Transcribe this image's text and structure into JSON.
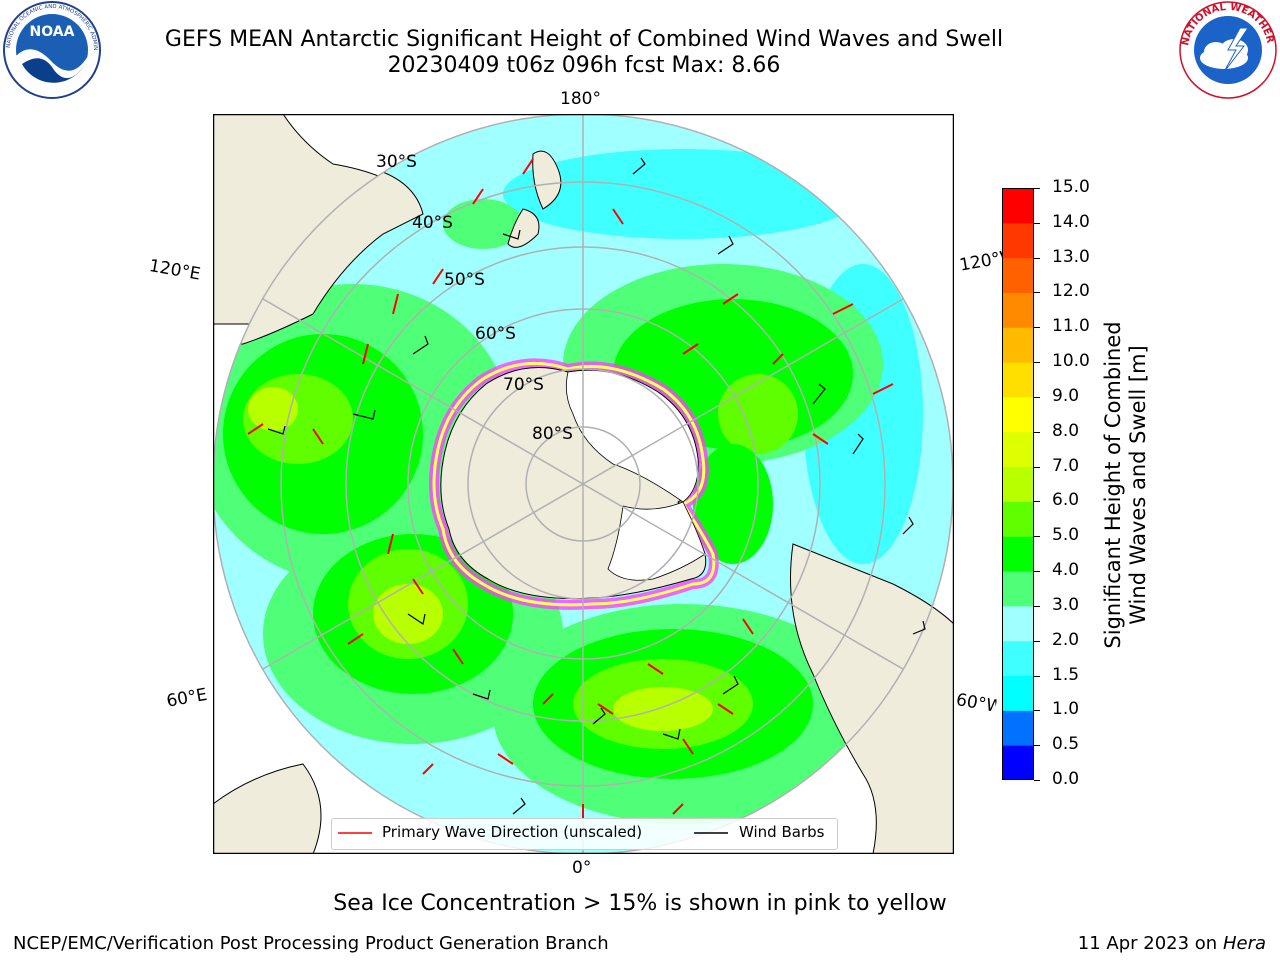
{
  "header": {
    "title": "GEFS MEAN Antarctic Significant Height of Combined Wind Waves and Swell",
    "subtitle": "20230409 t06z 096h fcst   Max: 8.66"
  },
  "logos": {
    "noaa_text": "NOAA",
    "noaa_ring_text": "NATIONAL OCEANIC AND ATMOSPHERIC ADMINISTRATION · U.S. DEPARTMENT OF COMMERCE",
    "nws_ring_text": "NATIONAL WEATHER SERVICE"
  },
  "map": {
    "longitude_labels": {
      "top": "180°",
      "upper_left": "120°E",
      "upper_right": "120°W",
      "lower_left": "60°E",
      "lower_right": "60°W",
      "bottom": "0°"
    },
    "latitude_labels": [
      "30°S",
      "40°S",
      "50°S",
      "60°S",
      "70°S",
      "80°S"
    ],
    "projection": "south polar stereographic",
    "max_value": 8.66
  },
  "colorbar": {
    "label_line1": "Significant Height of Combined",
    "label_line2": "Wind Waves and Swell [m]",
    "ticks": [
      "0.0",
      "0.5",
      "1.0",
      "1.5",
      "2.0",
      "3.0",
      "4.0",
      "5.0",
      "6.0",
      "7.0",
      "8.0",
      "9.0",
      "10.0",
      "11.0",
      "12.0",
      "13.0",
      "14.0",
      "15.0"
    ],
    "colors": [
      "#0000ff",
      "#0072ff",
      "#00ffff",
      "#40ffff",
      "#a0ffff",
      "#50ff78",
      "#00ff00",
      "#60ff00",
      "#b8ff00",
      "#ddff00",
      "#ffff00",
      "#ffdf00",
      "#ffbb00",
      "#ff8a00",
      "#ff6000",
      "#ff3800",
      "#ff0000"
    ]
  },
  "legend": {
    "wave_direction": "Primary Wave Direction (unscaled)",
    "wind_barbs": "Wind Barbs",
    "wave_color": "#ff0000",
    "barb_color": "#000000"
  },
  "notes": {
    "sea_ice": "Sea Ice Concentration > 15% is shown in pink to yellow"
  },
  "footer": {
    "left": "NCEP/EMC/Verification Post Processing Product Generation Branch",
    "date": "11 Apr 2023 on",
    "machine": "Hera"
  }
}
